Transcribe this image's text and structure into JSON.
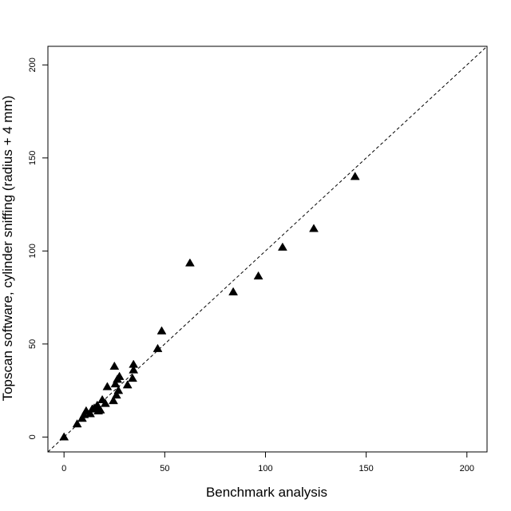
{
  "chart_data": {
    "type": "scatter",
    "title": "",
    "xlabel": "Benchmark analysis",
    "ylabel": "Topscan software, cylinder sniffing (radius + 4 mm)",
    "xlim": [
      -8,
      210
    ],
    "ylim": [
      -8,
      210
    ],
    "xticks": [
      0,
      50,
      100,
      150,
      200
    ],
    "yticks": [
      0,
      50,
      100,
      150,
      200
    ],
    "grid": false,
    "legend": "none",
    "marker": "filled-triangle",
    "marker_color": "#000000",
    "reference_line": {
      "style": "dashed",
      "slope": 1,
      "intercept": 0
    },
    "series": [
      {
        "x": [
          0,
          6.5,
          9,
          10,
          11,
          13,
          14,
          15,
          16.5,
          17,
          18,
          19,
          20.5,
          21.5,
          24.5,
          25,
          25.5,
          26,
          26.5,
          27,
          27.5,
          31.5,
          34,
          34.5,
          34.5,
          46.5,
          48.5,
          62.5,
          84,
          96.5,
          108.5,
          124,
          144.5
        ],
        "y": [
          0,
          7,
          10,
          12,
          14,
          12.5,
          15,
          15.5,
          17,
          14,
          14.5,
          20,
          18,
          27,
          19.5,
          38,
          28.5,
          22.5,
          31,
          25,
          32.5,
          28,
          31.5,
          36,
          39,
          47.5,
          57,
          93.5,
          78,
          86.5,
          102,
          112,
          140
        ]
      }
    ]
  }
}
